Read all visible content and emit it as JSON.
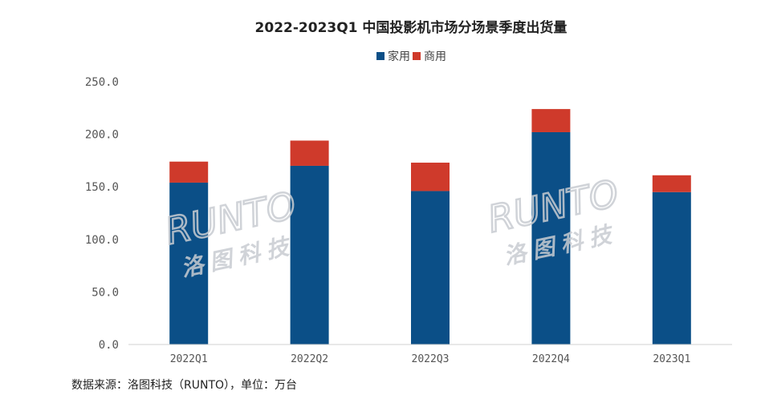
{
  "chart_data": {
    "type": "bar",
    "stacked": true,
    "title": "2022-2023Q1 中国投影机市场分场景季度出货量",
    "categories": [
      "2022Q1",
      "2022Q2",
      "2022Q3",
      "2022Q4",
      "2023Q1"
    ],
    "series": [
      {
        "name": "家用",
        "color": "#0b4f87",
        "values": [
          154,
          170,
          146,
          202,
          145
        ]
      },
      {
        "name": "商用",
        "color": "#cf3a2b",
        "values": [
          20,
          24,
          27,
          22,
          16
        ]
      }
    ],
    "yticks": [
      "0.0",
      "50.0",
      "100.0",
      "150.0",
      "200.0",
      "250.0"
    ],
    "ylim": [
      0,
      250
    ],
    "grid": false,
    "legend": "top-center",
    "source": "数据来源：洛图科技（RUNTO），单位：万台"
  },
  "watermark": {
    "latin": "RUNTO",
    "cn": "洛图科技"
  }
}
